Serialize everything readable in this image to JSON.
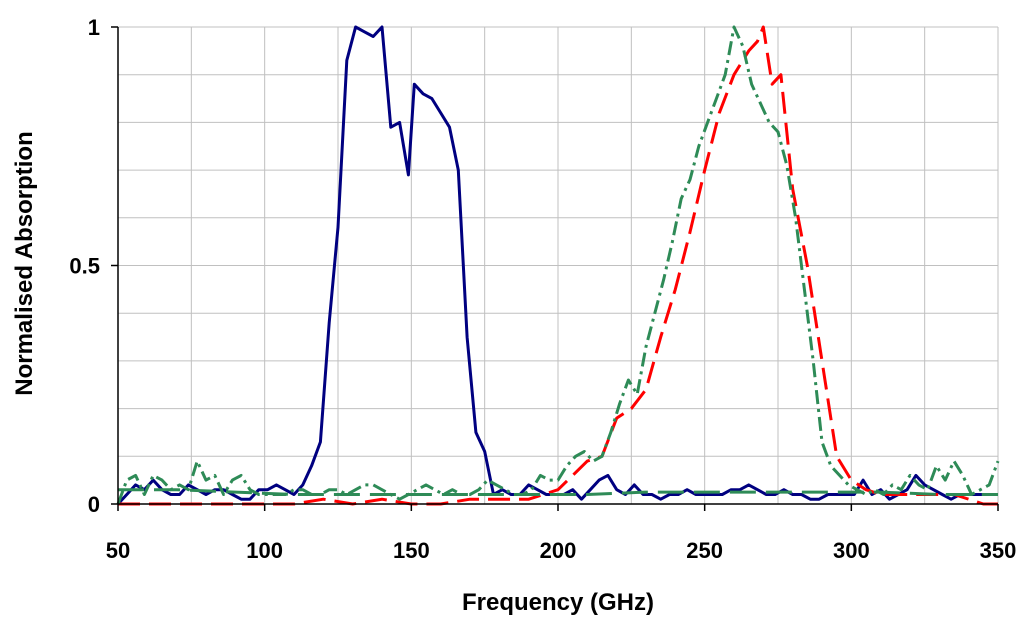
{
  "chart_data": {
    "type": "line",
    "title": "",
    "xlabel": "Frequency (GHz)",
    "ylabel": "Normalised Absorption",
    "xlim": [
      50,
      350
    ],
    "ylim": [
      0,
      1
    ],
    "x_ticks": [
      "50",
      "100",
      "150",
      "200",
      "250",
      "300",
      "350"
    ],
    "y_ticks": [
      "0",
      "0.5",
      "1"
    ],
    "x_tick_values": [
      50,
      100,
      150,
      200,
      250,
      300,
      350
    ],
    "y_tick_values": [
      0,
      0.5,
      1
    ],
    "x_minor_step": 25,
    "y_minor_step": 0.1,
    "grid": true,
    "legend": "none",
    "series": [
      {
        "color": "#000080",
        "dash": "solid",
        "x": [
          50,
          53,
          56,
          59,
          62,
          65,
          68,
          71,
          74,
          77,
          80,
          83,
          86,
          89,
          92,
          95,
          98,
          101,
          104,
          107,
          110,
          113,
          116,
          119,
          122,
          125,
          128,
          131,
          134,
          137,
          140,
          143,
          146,
          149,
          151,
          154,
          157,
          160,
          163,
          166,
          169,
          172,
          175,
          178,
          181,
          184,
          187,
          190,
          193,
          196,
          199,
          202,
          205,
          208,
          211,
          214,
          217,
          220,
          223,
          226,
          229,
          232,
          235,
          238,
          241,
          244,
          247,
          250,
          253,
          256,
          259,
          262,
          265,
          268,
          271,
          274,
          277,
          280,
          283,
          286,
          289,
          292,
          295,
          298,
          301,
          304,
          307,
          310,
          313,
          316,
          319,
          322,
          325,
          328,
          331,
          334,
          337,
          340,
          343,
          346,
          349,
          350
        ],
        "y": [
          0.0,
          0.02,
          0.04,
          0.03,
          0.05,
          0.03,
          0.02,
          0.02,
          0.04,
          0.03,
          0.02,
          0.03,
          0.03,
          0.02,
          0.01,
          0.01,
          0.03,
          0.03,
          0.04,
          0.03,
          0.02,
          0.04,
          0.08,
          0.13,
          0.38,
          0.58,
          0.93,
          1.0,
          0.99,
          0.98,
          1.0,
          0.79,
          0.8,
          0.69,
          0.88,
          0.86,
          0.85,
          0.82,
          0.79,
          0.7,
          0.35,
          0.15,
          0.11,
          0.02,
          0.03,
          0.02,
          0.02,
          0.04,
          0.03,
          0.02,
          0.02,
          0.02,
          0.03,
          0.01,
          0.03,
          0.05,
          0.06,
          0.03,
          0.02,
          0.04,
          0.02,
          0.02,
          0.01,
          0.02,
          0.02,
          0.03,
          0.02,
          0.02,
          0.02,
          0.02,
          0.03,
          0.03,
          0.04,
          0.03,
          0.02,
          0.02,
          0.03,
          0.02,
          0.02,
          0.01,
          0.01,
          0.02,
          0.02,
          0.02,
          0.02,
          0.05,
          0.02,
          0.03,
          0.01,
          0.02,
          0.03,
          0.06,
          0.04,
          0.03,
          0.02,
          0.01,
          0.02,
          0.02,
          0.02,
          0.02,
          0.02,
          0.02
        ]
      },
      {
        "color": "#ff0000",
        "dash": "22 9",
        "x": [
          50,
          60,
          70,
          80,
          90,
          100,
          110,
          120,
          130,
          140,
          150,
          160,
          170,
          180,
          190,
          195,
          200,
          205,
          210,
          215,
          220,
          225,
          230,
          235,
          240,
          245,
          250,
          255,
          260,
          265,
          268,
          270,
          273,
          276,
          280,
          285,
          290,
          295,
          300,
          305,
          310,
          315,
          320,
          325,
          330,
          335,
          340,
          345,
          350
        ],
        "y": [
          0.0,
          0.0,
          0.0,
          0.0,
          0.0,
          0.0,
          0.0,
          0.01,
          0.0,
          0.01,
          0.0,
          0.0,
          0.01,
          0.01,
          0.01,
          0.02,
          0.03,
          0.06,
          0.09,
          0.1,
          0.18,
          0.2,
          0.24,
          0.35,
          0.45,
          0.57,
          0.7,
          0.82,
          0.9,
          0.95,
          0.97,
          1.0,
          0.88,
          0.9,
          0.66,
          0.5,
          0.3,
          0.1,
          0.05,
          0.03,
          0.02,
          0.02,
          0.02,
          0.02,
          0.02,
          0.02,
          0.01,
          0.0,
          0.0
        ]
      },
      {
        "color": "#2e8b57",
        "dash": "14 5 3 5",
        "x": [
          50,
          53,
          56,
          59,
          62,
          65,
          68,
          71,
          74,
          77,
          80,
          83,
          86,
          89,
          92,
          95,
          98,
          101,
          104,
          107,
          110,
          113,
          116,
          119,
          122,
          125,
          128,
          131,
          134,
          137,
          140,
          143,
          146,
          149,
          152,
          155,
          158,
          161,
          164,
          167,
          170,
          173,
          176,
          179,
          182,
          185,
          188,
          191,
          194,
          197,
          200,
          203,
          206,
          209,
          212,
          215,
          218,
          221,
          224,
          227,
          230,
          233,
          236,
          239,
          242,
          245,
          248,
          251,
          254,
          257,
          260,
          263,
          266,
          269,
          272,
          275,
          278,
          281,
          284,
          287,
          290,
          293,
          296,
          299,
          302,
          305,
          308,
          311,
          314,
          317,
          320,
          323,
          326,
          329,
          332,
          335,
          338,
          341,
          344,
          347,
          350
        ],
        "y": [
          0.0,
          0.05,
          0.06,
          0.02,
          0.06,
          0.05,
          0.03,
          0.04,
          0.03,
          0.09,
          0.05,
          0.06,
          0.02,
          0.05,
          0.06,
          0.03,
          0.02,
          0.02,
          0.02,
          0.02,
          0.03,
          0.03,
          0.02,
          0.02,
          0.03,
          0.03,
          0.02,
          0.03,
          0.04,
          0.04,
          0.03,
          0.02,
          0.01,
          0.02,
          0.03,
          0.04,
          0.03,
          0.02,
          0.03,
          0.02,
          0.02,
          0.03,
          0.05,
          0.04,
          0.03,
          0.02,
          0.02,
          0.03,
          0.06,
          0.05,
          0.05,
          0.08,
          0.1,
          0.11,
          0.09,
          0.1,
          0.15,
          0.21,
          0.26,
          0.23,
          0.33,
          0.4,
          0.47,
          0.55,
          0.64,
          0.68,
          0.75,
          0.8,
          0.85,
          0.9,
          1.0,
          0.96,
          0.88,
          0.84,
          0.8,
          0.78,
          0.71,
          0.6,
          0.45,
          0.3,
          0.13,
          0.08,
          0.06,
          0.04,
          0.03,
          0.02,
          0.03,
          0.02,
          0.04,
          0.03,
          0.06,
          0.04,
          0.03,
          0.08,
          0.05,
          0.09,
          0.06,
          0.02,
          0.03,
          0.04,
          0.09
        ]
      },
      {
        "color": "#2e8b57",
        "dash": "26 10",
        "x": [
          50,
          70,
          90,
          110,
          130,
          150,
          170,
          190,
          210,
          230,
          250,
          270,
          290,
          310,
          330,
          350
        ],
        "y": [
          0.03,
          0.03,
          0.025,
          0.02,
          0.02,
          0.02,
          0.02,
          0.02,
          0.02,
          0.025,
          0.025,
          0.025,
          0.025,
          0.025,
          0.02,
          0.02
        ]
      }
    ]
  }
}
